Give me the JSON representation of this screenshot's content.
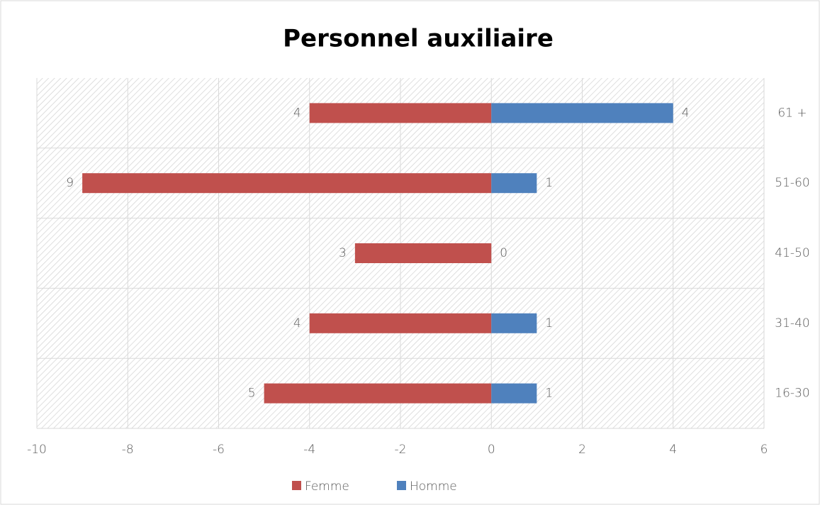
{
  "chart_data": {
    "type": "bar",
    "orientation": "horizontal",
    "title": "Personnel auxiliaire",
    "categories": [
      "61 +",
      "51-60",
      "41-50",
      "31-40",
      "16-30"
    ],
    "series": [
      {
        "name": "Femme",
        "color": "#c0504d",
        "values": [
          -4,
          -9,
          -3,
          -4,
          -5
        ],
        "value_labels": [
          "4",
          "9",
          "3",
          "4",
          "5"
        ]
      },
      {
        "name": "Homme",
        "color": "#4f81bd",
        "values": [
          4,
          1,
          0,
          1,
          1
        ]
      }
    ],
    "xlim": [
      -10,
      6
    ],
    "xticks": [
      -10,
      -8,
      -6,
      -4,
      -2,
      0,
      2,
      4,
      6
    ],
    "grid": true,
    "legend": "bottom"
  }
}
